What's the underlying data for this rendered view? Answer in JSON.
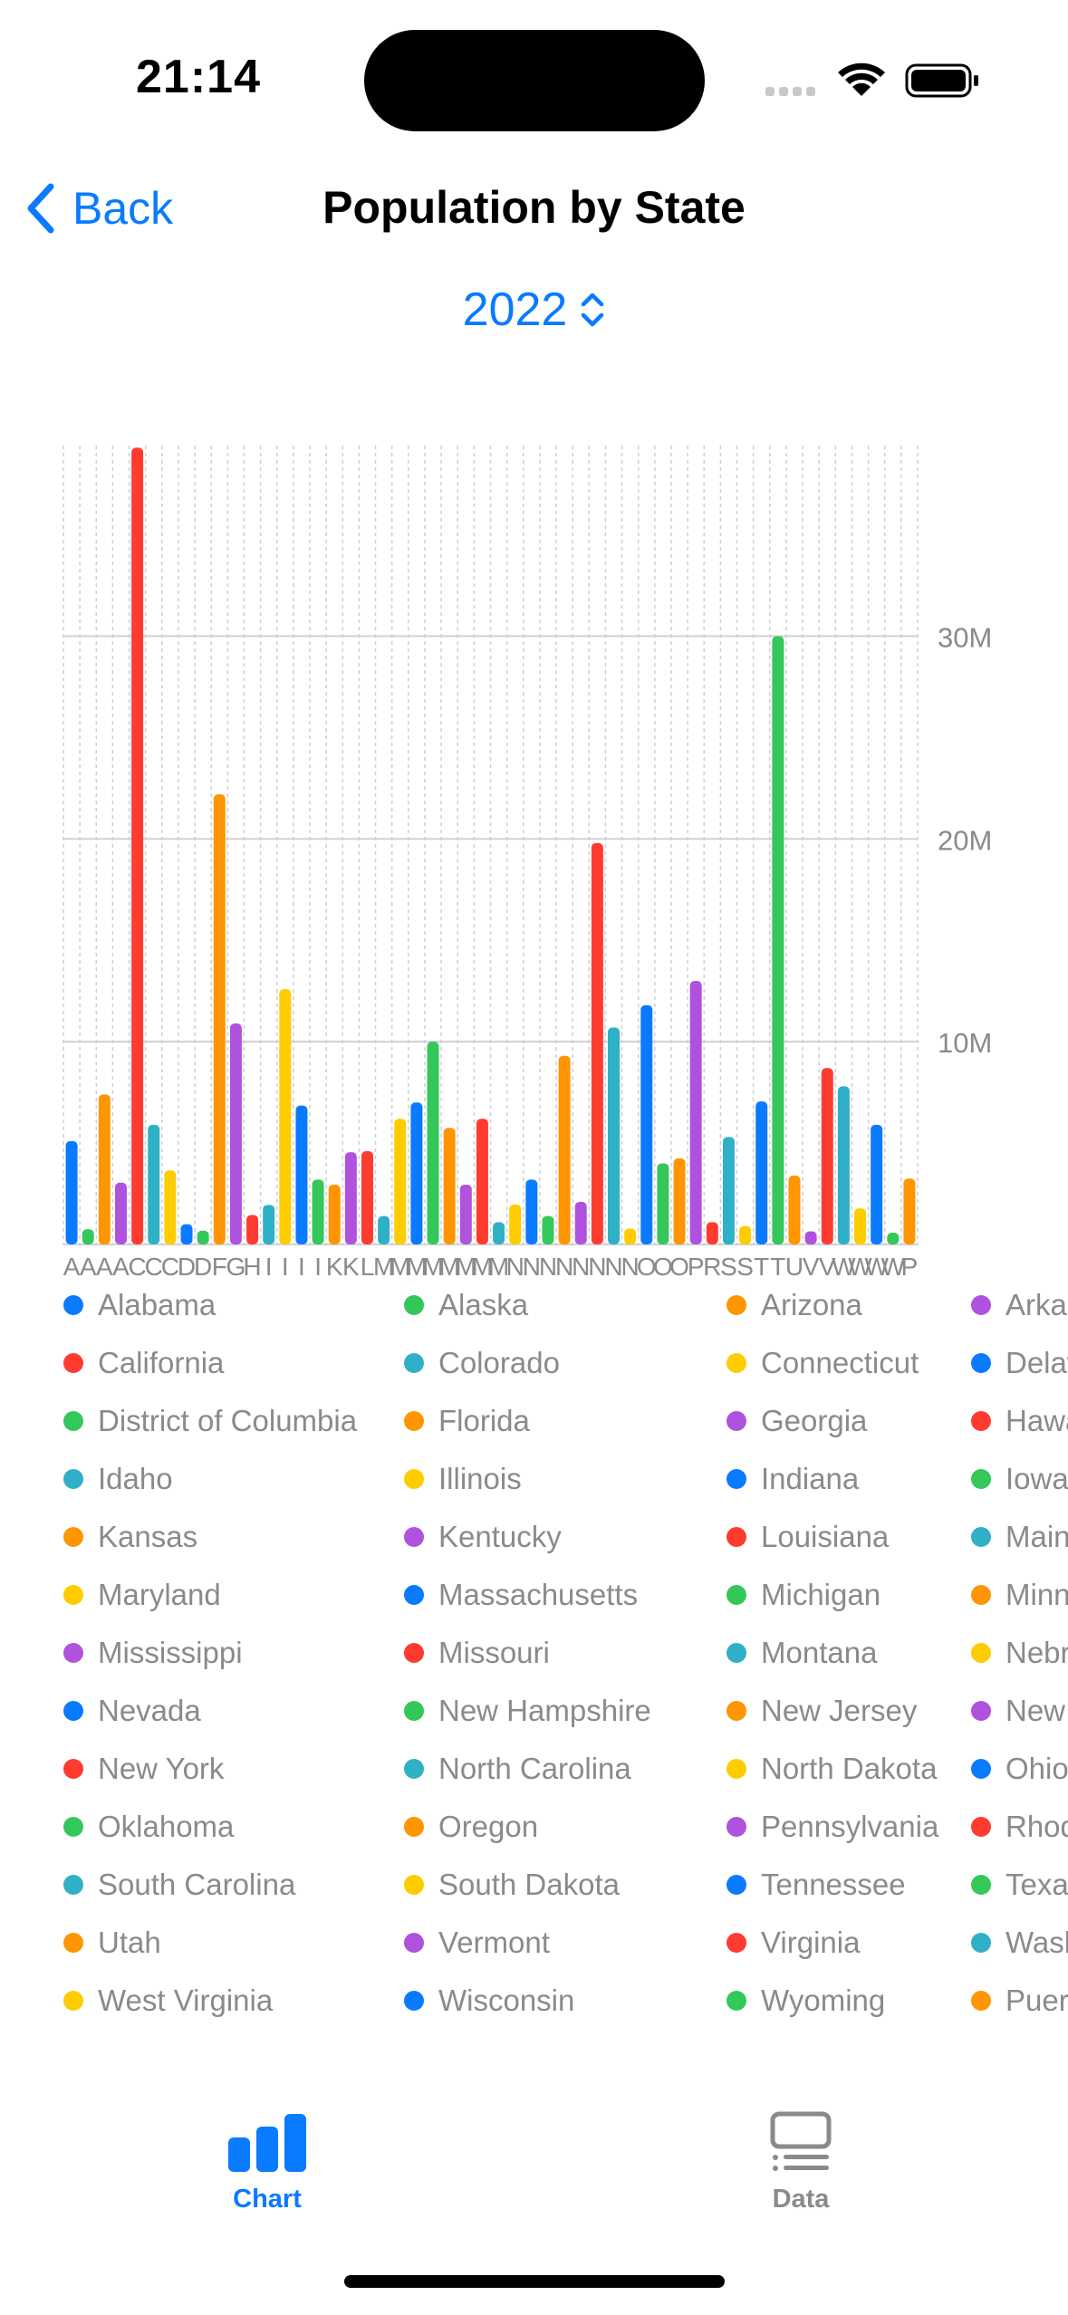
{
  "status_bar": {
    "time": "21:14",
    "icons": [
      "cellular-icon",
      "wifi-icon",
      "battery-icon"
    ]
  },
  "nav": {
    "back_label": "Back",
    "title": "Population by State"
  },
  "year_picker": {
    "value": "2022"
  },
  "colors": {
    "accent": "#0a7aff",
    "palette": [
      "#0a7aff",
      "#34c759",
      "#ff9500",
      "#af52de",
      "#ff3b30",
      "#30b0c7",
      "#ffcc00"
    ]
  },
  "chart_data": {
    "type": "bar",
    "title": "",
    "xlabel": "",
    "ylabel": "",
    "ylim": [
      0,
      39400000
    ],
    "yticks": [
      "10M",
      "20M",
      "30M"
    ],
    "ytick_values": [
      10000000,
      20000000,
      30000000
    ],
    "grid": true,
    "legend_placement": "bottom",
    "categories": [
      "Alabama",
      "Alaska",
      "Arizona",
      "Arkansas",
      "California",
      "Colorado",
      "Connecticut",
      "Delaware",
      "District of Columbia",
      "Florida",
      "Georgia",
      "Hawaii",
      "Idaho",
      "Illinois",
      "Indiana",
      "Iowa",
      "Kansas",
      "Kentucky",
      "Louisiana",
      "Maine",
      "Maryland",
      "Massachusetts",
      "Michigan",
      "Minnesota",
      "Mississippi",
      "Missouri",
      "Montana",
      "Nebraska",
      "Nevada",
      "New Hampshire",
      "New Jersey",
      "New Mexico",
      "New York",
      "North Carolina",
      "North Dakota",
      "Ohio",
      "Oklahoma",
      "Oregon",
      "Pennsylvania",
      "Rhode Island",
      "South Carolina",
      "South Dakota",
      "Tennessee",
      "Texas",
      "Utah",
      "Vermont",
      "Virginia",
      "Washington",
      "West Virginia",
      "Wisconsin",
      "Wyoming",
      "Puerto Rico"
    ],
    "tick_labels": [
      "A",
      "A",
      "A",
      "A",
      "C",
      "C",
      "C",
      "D",
      "D",
      "F",
      "G",
      "H",
      "I",
      "I",
      "I",
      "I",
      "K",
      "K",
      "L",
      "M",
      "M",
      "M",
      "M",
      "M",
      "M",
      "M",
      "M",
      "N",
      "N",
      "N",
      "N",
      "N",
      "N",
      "N",
      "N",
      "O",
      "O",
      "O",
      "P",
      "R",
      "S",
      "S",
      "T",
      "T",
      "U",
      "V",
      "V",
      "W",
      "W",
      "W",
      "W",
      "P"
    ],
    "values": [
      5100000,
      750000,
      7400000,
      3050000,
      39300000,
      5900000,
      3650000,
      1000000,
      680000,
      22200000,
      10900000,
      1450000,
      1950000,
      12600000,
      6850000,
      3200000,
      2950000,
      4550000,
      4600000,
      1400000,
      6200000,
      7000000,
      10000000,
      5750000,
      2950000,
      6200000,
      1100000,
      1970000,
      3200000,
      1400000,
      9300000,
      2100000,
      19800000,
      10700000,
      780000,
      11800000,
      4000000,
      4250000,
      13000000,
      1100000,
      5300000,
      910000,
      7050000,
      30000000,
      3400000,
      650000,
      8700000,
      7800000,
      1780000,
      5900000,
      580000,
      3250000
    ],
    "bar_colors": [
      "#0a7aff",
      "#34c759",
      "#ff9500",
      "#af52de",
      "#ff3b30",
      "#30b0c7",
      "#ffcc00",
      "#0a7aff",
      "#34c759",
      "#ff9500",
      "#af52de",
      "#ff3b30",
      "#30b0c7",
      "#ffcc00",
      "#0a7aff",
      "#34c759",
      "#ff9500",
      "#af52de",
      "#ff3b30",
      "#30b0c7",
      "#ffcc00",
      "#0a7aff",
      "#34c759",
      "#ff9500",
      "#af52de",
      "#ff3b30",
      "#30b0c7",
      "#ffcc00",
      "#0a7aff",
      "#34c759",
      "#ff9500",
      "#af52de",
      "#ff3b30",
      "#30b0c7",
      "#ffcc00",
      "#0a7aff",
      "#34c759",
      "#ff9500",
      "#af52de",
      "#ff3b30",
      "#30b0c7",
      "#ffcc00",
      "#0a7aff",
      "#34c759",
      "#ff9500",
      "#af52de",
      "#ff3b30",
      "#30b0c7",
      "#ffcc00",
      "#0a7aff",
      "#34c759",
      "#ff9500"
    ]
  },
  "legend": {
    "items": [
      {
        "label": "Alabama",
        "color": "#0a7aff"
      },
      {
        "label": "Alaska",
        "color": "#34c759"
      },
      {
        "label": "Arizona",
        "color": "#ff9500"
      },
      {
        "label": "Arkans",
        "color": "#af52de"
      },
      {
        "label": "California",
        "color": "#ff3b30"
      },
      {
        "label": "Colorado",
        "color": "#30b0c7"
      },
      {
        "label": "Connecticut",
        "color": "#ffcc00"
      },
      {
        "label": "Delawa",
        "color": "#0a7aff"
      },
      {
        "label": "District of Columbia",
        "color": "#34c759"
      },
      {
        "label": "Florida",
        "color": "#ff9500"
      },
      {
        "label": "Georgia",
        "color": "#af52de"
      },
      {
        "label": "Hawaii",
        "color": "#ff3b30"
      },
      {
        "label": "Idaho",
        "color": "#30b0c7"
      },
      {
        "label": "Illinois",
        "color": "#ffcc00"
      },
      {
        "label": "Indiana",
        "color": "#0a7aff"
      },
      {
        "label": "Iowa",
        "color": "#34c759"
      },
      {
        "label": "Kansas",
        "color": "#ff9500"
      },
      {
        "label": "Kentucky",
        "color": "#af52de"
      },
      {
        "label": "Louisiana",
        "color": "#ff3b30"
      },
      {
        "label": "Maine",
        "color": "#30b0c7"
      },
      {
        "label": "Maryland",
        "color": "#ffcc00"
      },
      {
        "label": "Massachusetts",
        "color": "#0a7aff"
      },
      {
        "label": "Michigan",
        "color": "#34c759"
      },
      {
        "label": "Minnes",
        "color": "#ff9500"
      },
      {
        "label": "Mississippi",
        "color": "#af52de"
      },
      {
        "label": "Missouri",
        "color": "#ff3b30"
      },
      {
        "label": "Montana",
        "color": "#30b0c7"
      },
      {
        "label": "Nebras",
        "color": "#ffcc00"
      },
      {
        "label": "Nevada",
        "color": "#0a7aff"
      },
      {
        "label": "New Hampshire",
        "color": "#34c759"
      },
      {
        "label": "New Jersey",
        "color": "#ff9500"
      },
      {
        "label": "New M",
        "color": "#af52de"
      },
      {
        "label": "New York",
        "color": "#ff3b30"
      },
      {
        "label": "North Carolina",
        "color": "#30b0c7"
      },
      {
        "label": "North Dakota",
        "color": "#ffcc00"
      },
      {
        "label": "Ohio",
        "color": "#0a7aff"
      },
      {
        "label": "Oklahoma",
        "color": "#34c759"
      },
      {
        "label": "Oregon",
        "color": "#ff9500"
      },
      {
        "label": "Pennsylvania",
        "color": "#af52de"
      },
      {
        "label": "Rhode",
        "color": "#ff3b30"
      },
      {
        "label": "South Carolina",
        "color": "#30b0c7"
      },
      {
        "label": "South Dakota",
        "color": "#ffcc00"
      },
      {
        "label": "Tennessee",
        "color": "#0a7aff"
      },
      {
        "label": "Texas",
        "color": "#34c759"
      },
      {
        "label": "Utah",
        "color": "#ff9500"
      },
      {
        "label": "Vermont",
        "color": "#af52de"
      },
      {
        "label": "Virginia",
        "color": "#ff3b30"
      },
      {
        "label": "Washin",
        "color": "#30b0c7"
      },
      {
        "label": "West Virginia",
        "color": "#ffcc00"
      },
      {
        "label": "Wisconsin",
        "color": "#0a7aff"
      },
      {
        "label": "Wyoming",
        "color": "#34c759"
      },
      {
        "label": "Puerto",
        "color": "#ff9500"
      }
    ]
  },
  "tab_bar": {
    "tabs": [
      {
        "label": "Chart",
        "icon": "chart-bar-icon",
        "active": true
      },
      {
        "label": "Data",
        "icon": "data-list-icon",
        "active": false
      }
    ]
  }
}
